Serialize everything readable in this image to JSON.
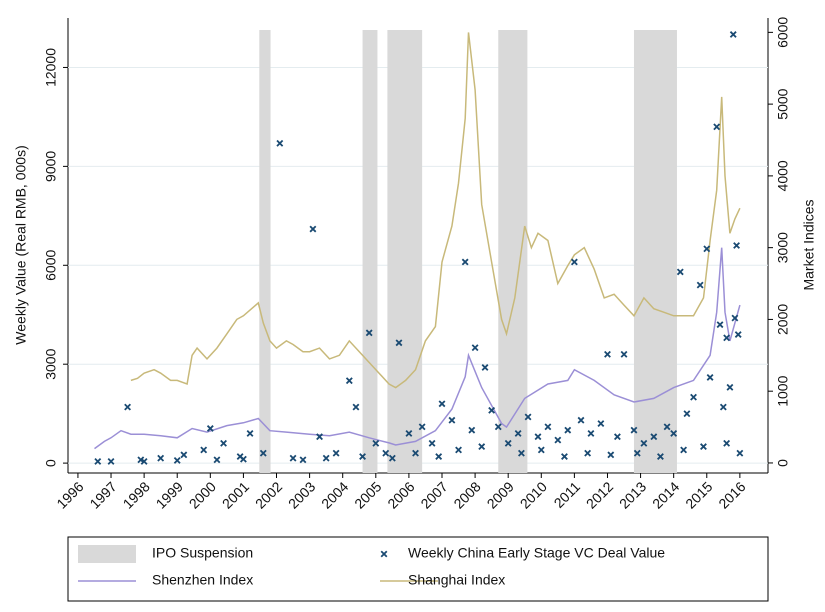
{
  "chart_data": {
    "type": "line",
    "y_label": "Weekly Value (Real RMB, 000s)",
    "y2_label": "Market Indices",
    "xlim": [
      1995.7,
      2016.85
    ],
    "xticks": [
      1996,
      1997,
      1998,
      1999,
      2000,
      2001,
      2002,
      2003,
      2004,
      2005,
      2006,
      2007,
      2008,
      2009,
      2010,
      2011,
      2012,
      2013,
      2014,
      2015,
      2016
    ],
    "ylim": [
      -300,
      13500
    ],
    "yticks": [
      0,
      3000,
      6000,
      9000,
      12000
    ],
    "y2lim": [
      -140,
      6200
    ],
    "y2ticks": [
      0,
      1000,
      2000,
      3000,
      4000,
      5000,
      6000
    ],
    "grid": true,
    "shaded_regions": {
      "name": "IPO Suspension",
      "color": "#d9d9d9",
      "ranges": [
        [
          2001.48,
          2001.82
        ],
        [
          2004.6,
          2005.05
        ],
        [
          2005.35,
          2006.4
        ],
        [
          2008.7,
          2009.58
        ],
        [
          2012.8,
          2014.1
        ]
      ]
    },
    "series": [
      {
        "name": "Weekly China Early Stage VC Deal Value",
        "type": "scatter",
        "color": "#1a4a72",
        "x": [
          1997.5,
          1997.9,
          1998.5,
          1999.2,
          1999.8,
          2000.0,
          2000.4,
          2000.9,
          2001.2,
          2001.6,
          2002.1,
          2002.5,
          2003.1,
          2003.3,
          2003.8,
          2004.2,
          2004.4,
          2004.8,
          2005.0,
          2005.3,
          2005.7,
          2006.0,
          2006.4,
          2006.7,
          2007.0,
          2007.3,
          2007.7,
          2007.9,
          2008.0,
          2008.3,
          2008.5,
          2008.7,
          2009.0,
          2009.3,
          2009.6,
          2009.9,
          2010.2,
          2010.5,
          2010.8,
          2011.0,
          2011.2,
          2011.5,
          2011.8,
          2012.0,
          2012.3,
          2012.5,
          2012.8,
          2013.1,
          2013.4,
          2013.8,
          2014.0,
          2014.2,
          2014.4,
          2014.6,
          2014.8,
          2015.0,
          2015.1,
          2015.3,
          2015.4,
          2015.5,
          2015.6,
          2015.7,
          2015.8,
          2015.85,
          2015.9,
          2015.95,
          2016.0,
          1996.6,
          1997.0,
          1998.0,
          1999.0,
          2000.2,
          2001.0,
          2002.8,
          2003.5,
          2004.6,
          2005.5,
          2006.2,
          2006.9,
          2007.5,
          2008.2,
          2009.4,
          2010.0,
          2010.7,
          2011.4,
          2012.1,
          2012.9,
          2013.6,
          2014.3,
          2014.9,
          2015.6
        ],
        "values": [
          1700,
          100,
          150,
          250,
          400,
          1050,
          600,
          200,
          900,
          300,
          9700,
          150,
          7100,
          800,
          300,
          2500,
          1700,
          3950,
          600,
          300,
          3650,
          900,
          1100,
          600,
          1800,
          1300,
          6100,
          1000,
          3500,
          2900,
          1600,
          1100,
          600,
          900,
          1400,
          800,
          1100,
          700,
          1000,
          6100,
          1300,
          900,
          1200,
          3300,
          800,
          3300,
          1000,
          600,
          800,
          1100,
          900,
          5800,
          1500,
          2000,
          5400,
          6500,
          2600,
          10200,
          4200,
          1700,
          3800,
          2300,
          13000,
          4400,
          6600,
          3900,
          300,
          50,
          50,
          50,
          80,
          100,
          120,
          100,
          150,
          200,
          150,
          300,
          200,
          400,
          500,
          300,
          400,
          200,
          300,
          250,
          300,
          200,
          400,
          500,
          600
        ]
      },
      {
        "name": "Shenzhen Index",
        "type": "line",
        "axis": "y2",
        "color": "#9b8fd6",
        "x": [
          1996.5,
          1996.8,
          1997.0,
          1997.3,
          1997.6,
          1998.0,
          1998.5,
          1999.0,
          1999.45,
          1999.9,
          2000.5,
          2001.0,
          2001.45,
          2001.8,
          2002.3,
          2003.0,
          2003.6,
          2004.2,
          2004.8,
          2005.4,
          2005.6,
          2006.2,
          2006.8,
          2007.3,
          2007.7,
          2007.8,
          2008.2,
          2008.8,
          2008.95,
          2009.5,
          2010.2,
          2010.8,
          2011.0,
          2011.6,
          2012.2,
          2012.8,
          2013.4,
          2014.0,
          2014.6,
          2015.1,
          2015.3,
          2015.45,
          2015.55,
          2015.7,
          2016.0
        ],
        "values": [
          200,
          300,
          350,
          450,
          400,
          400,
          380,
          350,
          480,
          430,
          520,
          560,
          620,
          450,
          430,
          400,
          380,
          430,
          350,
          280,
          250,
          300,
          450,
          750,
          1200,
          1500,
          1050,
          550,
          500,
          900,
          1100,
          1150,
          1300,
          1150,
          950,
          850,
          900,
          1050,
          1150,
          1500,
          2100,
          3000,
          2100,
          1700,
          2200
        ]
      },
      {
        "name": "Shanghai Index",
        "type": "line",
        "axis": "y2",
        "color": "#c8b97a",
        "x": [
          1997.6,
          1997.8,
          1998.0,
          1998.3,
          1998.5,
          1998.8,
          1999.0,
          1999.3,
          1999.45,
          1999.6,
          1999.9,
          2000.2,
          2000.5,
          2000.8,
          2001.0,
          2001.45,
          2001.6,
          2001.8,
          2002.0,
          2002.3,
          2002.5,
          2002.8,
          2003.0,
          2003.3,
          2003.6,
          2003.9,
          2004.2,
          2004.5,
          2004.8,
          2005.1,
          2005.4,
          2005.6,
          2005.9,
          2006.2,
          2006.5,
          2006.8,
          2007.0,
          2007.3,
          2007.5,
          2007.7,
          2007.8,
          2008.0,
          2008.2,
          2008.5,
          2008.8,
          2008.95,
          2009.2,
          2009.5,
          2009.7,
          2009.9,
          2010.2,
          2010.5,
          2010.8,
          2011.0,
          2011.3,
          2011.6,
          2011.9,
          2012.2,
          2012.5,
          2012.8,
          2013.1,
          2013.4,
          2013.7,
          2014.0,
          2014.3,
          2014.6,
          2014.9,
          2015.1,
          2015.3,
          2015.45,
          2015.55,
          2015.7,
          2015.85,
          2016.0
        ],
        "values": [
          1150,
          1180,
          1250,
          1300,
          1250,
          1150,
          1150,
          1100,
          1500,
          1600,
          1450,
          1600,
          1800,
          2000,
          2050,
          2230,
          1950,
          1700,
          1600,
          1700,
          1650,
          1550,
          1550,
          1600,
          1450,
          1500,
          1700,
          1550,
          1400,
          1250,
          1100,
          1050,
          1150,
          1300,
          1700,
          1900,
          2800,
          3300,
          3900,
          4800,
          6000,
          5200,
          3600,
          2800,
          2000,
          1800,
          2300,
          3300,
          3000,
          3200,
          3100,
          2500,
          2750,
          2900,
          3000,
          2700,
          2300,
          2350,
          2200,
          2050,
          2300,
          2150,
          2100,
          2050,
          2050,
          2050,
          2300,
          3100,
          3800,
          5100,
          4000,
          3200,
          3400,
          3550
        ]
      }
    ]
  }
}
